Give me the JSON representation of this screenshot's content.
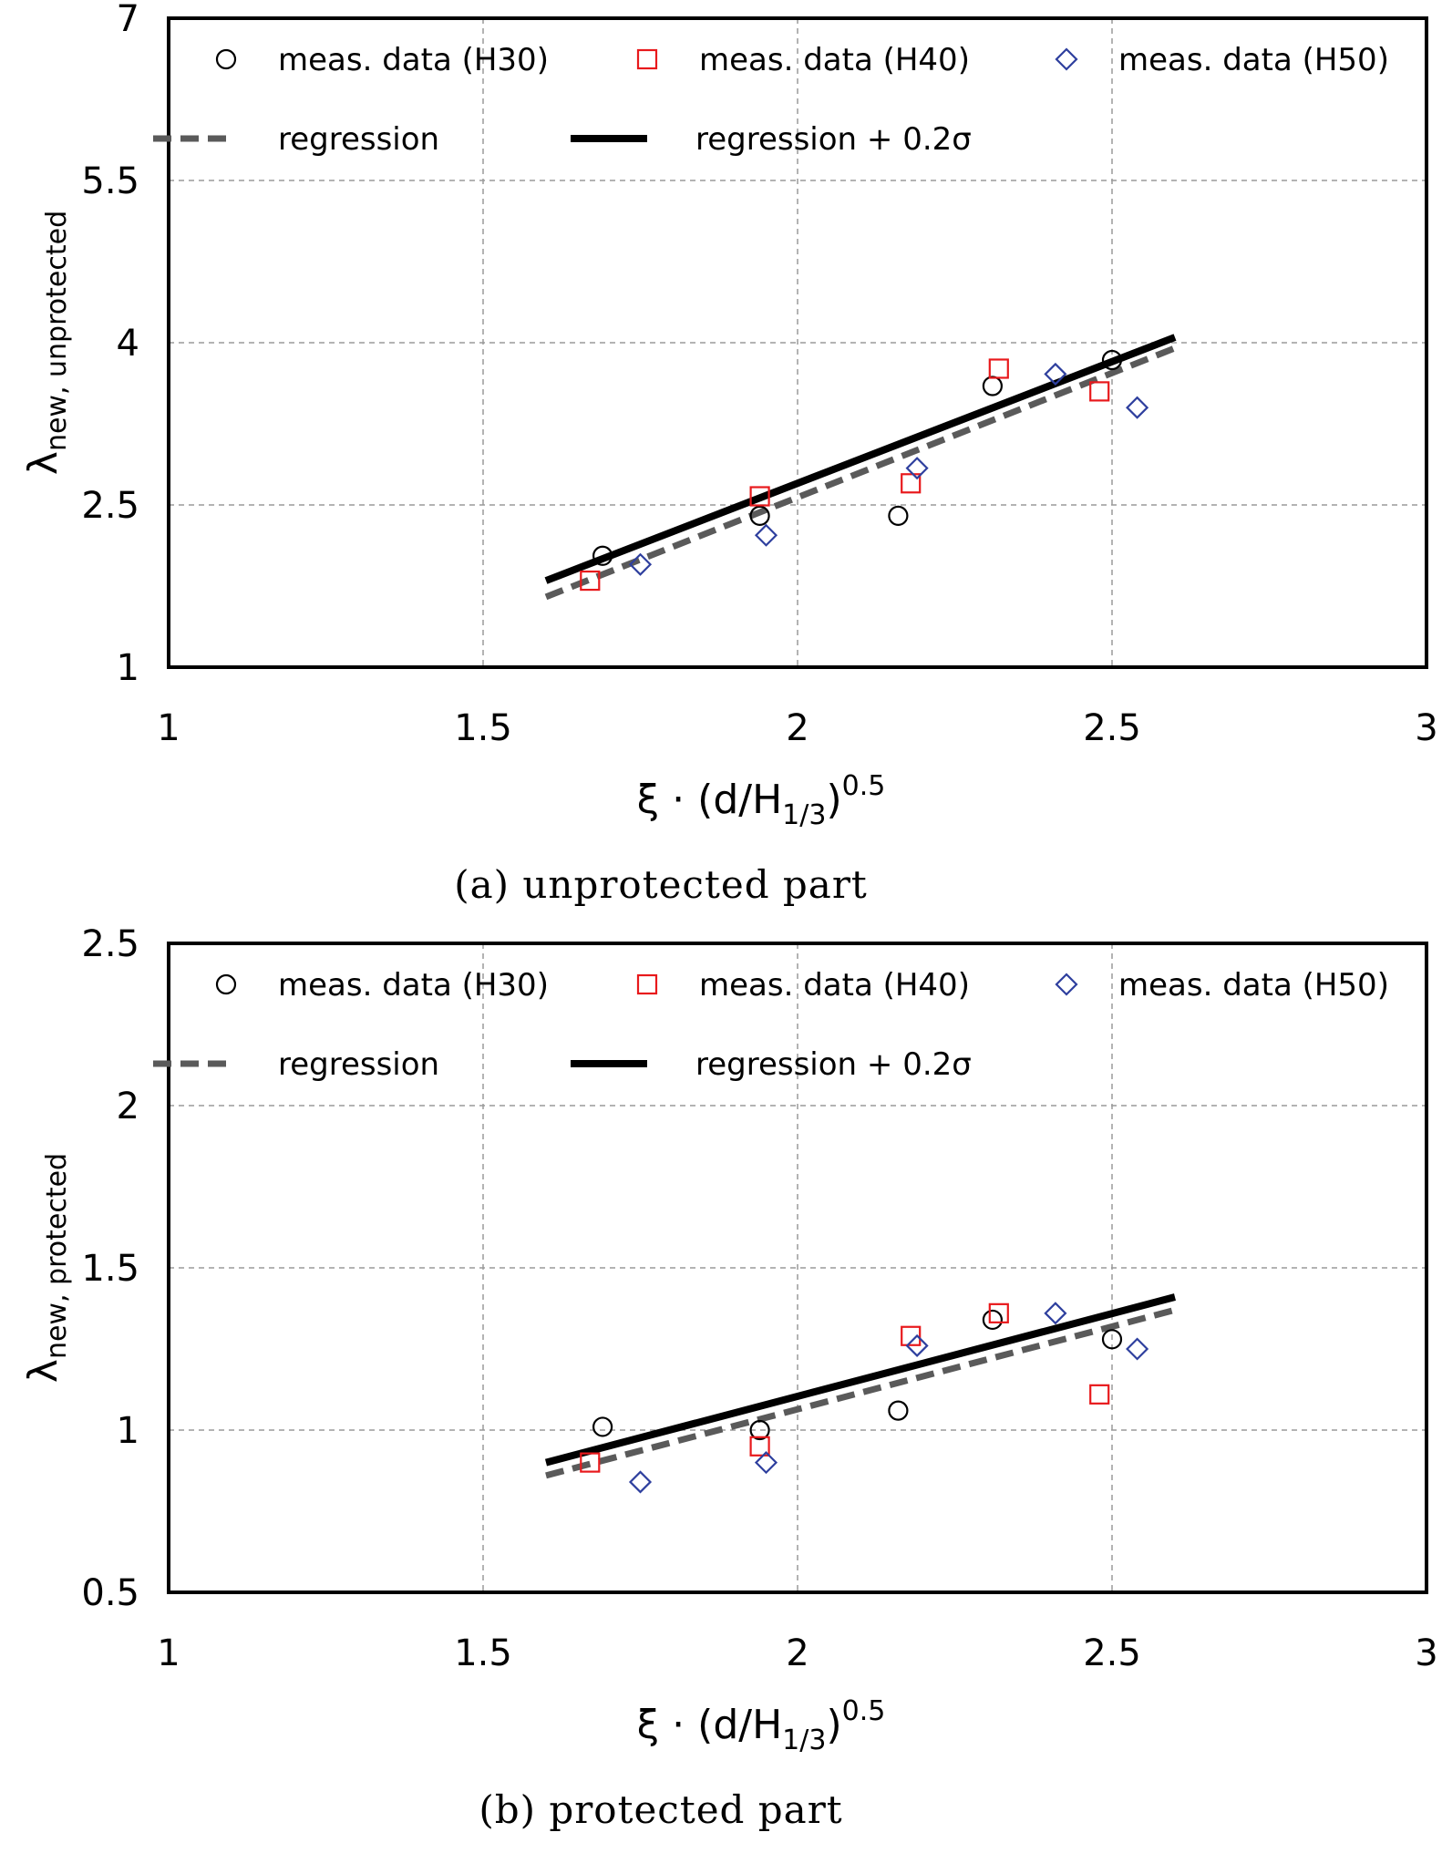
{
  "chart_data": [
    {
      "type": "scatter",
      "caption": "(a) unprotected part",
      "xlabel": {
        "main": "ξ · (d/H",
        "sub": "1/3",
        "close": ")",
        "sup": "0.5"
      },
      "ylabel": {
        "main": "λ",
        "sub": "new, unprotected"
      },
      "xlim": [
        1,
        3
      ],
      "ylim": [
        1,
        7
      ],
      "xticks": [
        1,
        1.5,
        2,
        2.5,
        3
      ],
      "xtick_labels": [
        "1",
        "1.5",
        "2",
        "2.5",
        "3"
      ],
      "yticks": [
        1,
        2.5,
        4,
        5.5,
        7
      ],
      "ytick_labels": [
        "1",
        "2.5",
        "4",
        "5.5",
        "7"
      ],
      "grid": true,
      "legend_position": "top",
      "series": [
        {
          "name": "meas. data (H30)",
          "marker": "circle",
          "color": "#000000",
          "points": [
            [
              1.69,
              2.03
            ],
            [
              1.94,
              2.4
            ],
            [
              2.16,
              2.4
            ],
            [
              2.31,
              3.6
            ],
            [
              2.5,
              3.84
            ]
          ]
        },
        {
          "name": "meas. data (H40)",
          "marker": "square",
          "color": "#e8191c",
          "points": [
            [
              1.67,
              1.8
            ],
            [
              1.94,
              2.58
            ],
            [
              2.18,
              2.7
            ],
            [
              2.32,
              3.76
            ],
            [
              2.48,
              3.55
            ]
          ]
        },
        {
          "name": "meas. data (H50)",
          "marker": "diamond",
          "color": "#2e3f9e",
          "points": [
            [
              1.75,
              1.95
            ],
            [
              1.95,
              2.22
            ],
            [
              2.19,
              2.84
            ],
            [
              2.41,
              3.71
            ],
            [
              2.54,
              3.4
            ]
          ]
        },
        {
          "name": "regression",
          "kind": "line",
          "style": "dashed",
          "color": "#5a5a5a",
          "points": [
            [
              1.6,
              1.65
            ],
            [
              2.6,
              3.95
            ]
          ]
        },
        {
          "name": "regression + 0.2σ",
          "kind": "line",
          "style": "solid",
          "color": "#000000",
          "points": [
            [
              1.6,
              1.8
            ],
            [
              2.6,
              4.05
            ]
          ]
        }
      ]
    },
    {
      "type": "scatter",
      "caption": "(b) protected part",
      "xlabel": {
        "main": "ξ · (d/H",
        "sub": "1/3",
        "close": ")",
        "sup": "0.5"
      },
      "ylabel": {
        "main": "λ",
        "sub": "new, protected"
      },
      "xlim": [
        1,
        3
      ],
      "ylim": [
        0.5,
        2.5
      ],
      "xticks": [
        1,
        1.5,
        2,
        2.5,
        3
      ],
      "xtick_labels": [
        "1",
        "1.5",
        "2",
        "2.5",
        "3"
      ],
      "yticks": [
        0.5,
        1,
        1.5,
        2,
        2.5
      ],
      "ytick_labels": [
        "0.5",
        "1",
        "1.5",
        "2",
        "2.5"
      ],
      "grid": true,
      "legend_position": "top",
      "series": [
        {
          "name": "meas. data (H30)",
          "marker": "circle",
          "color": "#000000",
          "points": [
            [
              1.69,
              1.01
            ],
            [
              1.94,
              1.0
            ],
            [
              2.16,
              1.06
            ],
            [
              2.31,
              1.34
            ],
            [
              2.5,
              1.28
            ]
          ]
        },
        {
          "name": "meas. data (H40)",
          "marker": "square",
          "color": "#e8191c",
          "points": [
            [
              1.67,
              0.9
            ],
            [
              1.94,
              0.95
            ],
            [
              2.18,
              1.29
            ],
            [
              2.32,
              1.36
            ],
            [
              2.48,
              1.11
            ]
          ]
        },
        {
          "name": "meas. data (H50)",
          "marker": "diamond",
          "color": "#2e3f9e",
          "points": [
            [
              1.75,
              0.84
            ],
            [
              1.95,
              0.9
            ],
            [
              2.19,
              1.26
            ],
            [
              2.41,
              1.36
            ],
            [
              2.54,
              1.25
            ]
          ]
        },
        {
          "name": "regression",
          "kind": "line",
          "style": "dashed",
          "color": "#5a5a5a",
          "points": [
            [
              1.6,
              0.86
            ],
            [
              2.6,
              1.37
            ]
          ]
        },
        {
          "name": "regression + 0.2σ",
          "kind": "line",
          "style": "solid",
          "color": "#000000",
          "points": [
            [
              1.6,
              0.9
            ],
            [
              2.6,
              1.41
            ]
          ]
        }
      ]
    }
  ]
}
